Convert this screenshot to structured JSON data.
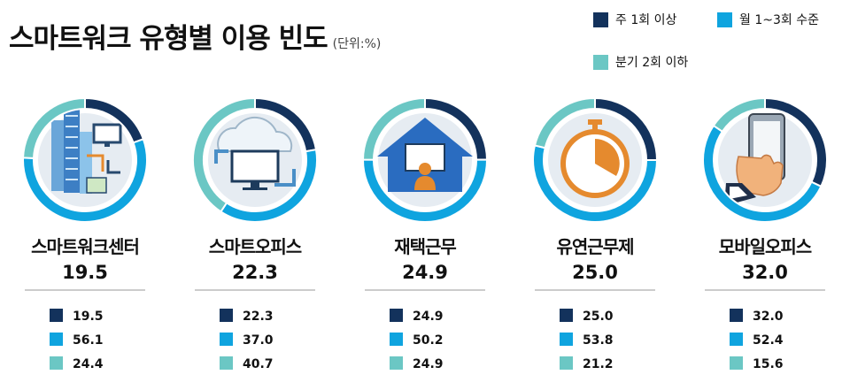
{
  "header": {
    "title": "스마트워크 유형별 이용 빈도",
    "unit": "(단위:%)"
  },
  "colors": {
    "weekly": "#13325c",
    "monthly": "#0fa4df",
    "quarterly": "#6bc7c4",
    "separator": "#999999"
  },
  "chart_data": {
    "type": "pie",
    "title": "스마트워크 유형별 이용 빈도",
    "unit": "(단위:%)",
    "series_names": [
      "주 1회 이상",
      "월 1~3회 수준",
      "분기 2회 이하"
    ],
    "legend": [
      {
        "label": "주 1회 이상",
        "color": "#13325c"
      },
      {
        "label": "월 1~3회 수준",
        "color": "#0fa4df"
      },
      {
        "label": "분기 2회 이하",
        "color": "#6bc7c4"
      }
    ],
    "legend_position": "top-right",
    "categories": [
      "스마트워크센터",
      "스마트오피스",
      "재택근무",
      "유연근무제",
      "모바일오피스"
    ],
    "groups": [
      {
        "name": "스마트워크센터",
        "headline": "19.5",
        "icon": "building-workflow-icon",
        "values": [
          19.5,
          56.1,
          24.4
        ],
        "labels": [
          "19.5",
          "56.1",
          "24.4"
        ]
      },
      {
        "name": "스마트오피스",
        "headline": "22.3",
        "icon": "cloud-monitor-icon",
        "values": [
          22.3,
          37.0,
          40.7
        ],
        "labels": [
          "22.3",
          "37.0",
          "40.7"
        ]
      },
      {
        "name": "재택근무",
        "headline": "24.9",
        "icon": "home-worker-icon",
        "values": [
          24.9,
          50.2,
          24.9
        ],
        "labels": [
          "24.9",
          "50.2",
          "24.9"
        ]
      },
      {
        "name": "유연근무제",
        "headline": "25.0",
        "icon": "stopwatch-icon",
        "values": [
          25.0,
          53.8,
          21.2
        ],
        "labels": [
          "25.0",
          "53.8",
          "21.2"
        ]
      },
      {
        "name": "모바일오피스",
        "headline": "32.0",
        "icon": "hand-phone-icon",
        "values": [
          32.0,
          52.4,
          15.6
        ],
        "labels": [
          "32.0",
          "52.4",
          "15.6"
        ]
      }
    ]
  }
}
